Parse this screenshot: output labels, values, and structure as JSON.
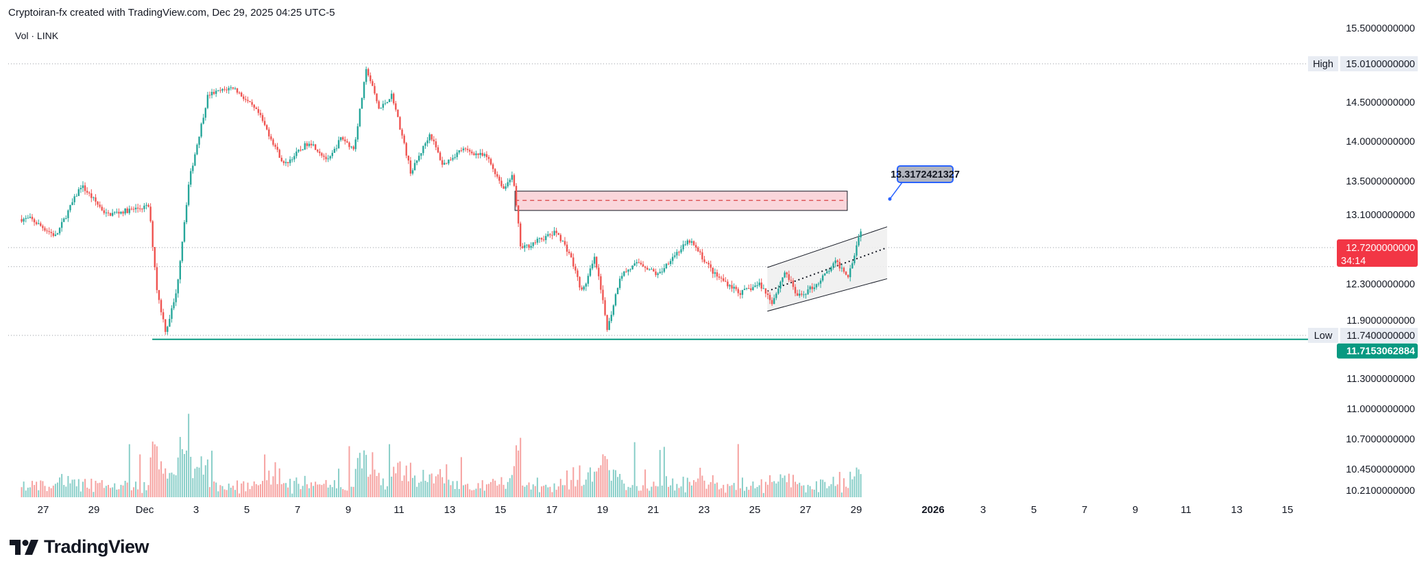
{
  "header": {
    "title": "Cryptoiran-fx created with TradingView.com, Dec 29, 2025 04:25 UTC-5",
    "vol_label": "Vol · LINK",
    "logo_text": "TradingView"
  },
  "chart_data": {
    "type": "candlestick",
    "symbol": "LINK",
    "interval_hours": 2,
    "x_ticks": [
      "27",
      "29",
      "Dec",
      "3",
      "5",
      "7",
      "9",
      "11",
      "13",
      "15",
      "17",
      "19",
      "21",
      "23",
      "25",
      "27",
      "29",
      "2026",
      "3",
      "5",
      "7",
      "9",
      "11",
      "13",
      "15"
    ],
    "y_ticks": [
      "15.5000000000",
      "14.5000000000",
      "14.0000000000",
      "13.5000000000",
      "13.1000000000",
      "12.3000000000",
      "11.9000000000",
      "11.3000000000",
      "11.0000000000",
      "10.7000000000",
      "10.4500000000",
      "10.2100000000"
    ],
    "y_tick_values": [
      15.5,
      14.5,
      14.0,
      13.5,
      13.1,
      12.3,
      11.9,
      11.3,
      11.0,
      10.7,
      10.45,
      10.21
    ],
    "high": {
      "label": "High",
      "value": "15.0100000000"
    },
    "low": {
      "label": "Low",
      "value": "11.7400000000"
    },
    "last_price": {
      "value": "12.7200000000",
      "countdown": "34:14"
    },
    "support_tag": "11.7153062884",
    "callout_value": "13.3172421327",
    "zone": {
      "top": 13.38,
      "bottom": 13.15,
      "mid": 13.27
    },
    "channel": {
      "upper": [
        [
          12.49,
          12.96
        ],
        [
          12.55,
          13.1
        ]
      ],
      "lower": [
        [
          12.0,
          12.36
        ],
        [
          12.06,
          12.5
        ]
      ],
      "mid_dotted": [
        12.22,
        12.72
      ]
    },
    "key_points": [
      [
        "Nov 26",
        13.05
      ],
      [
        "Nov 27",
        12.85
      ],
      [
        "Nov 28",
        13.45
      ],
      [
        "Nov 29",
        13.1
      ],
      [
        "Dec 1",
        13.2
      ],
      [
        "Dec 1",
        12.2
      ],
      [
        "Dec 1",
        11.78
      ],
      [
        "Dec 2",
        12.2
      ],
      [
        "Dec 2",
        13.5
      ],
      [
        "Dec 3",
        14.6
      ],
      [
        "Dec 4",
        14.7
      ],
      [
        "Dec 5",
        14.35
      ],
      [
        "Dec 6",
        13.7
      ],
      [
        "Dec 7",
        14.0
      ],
      [
        "Dec 8",
        13.75
      ],
      [
        "Dec 8",
        14.05
      ],
      [
        "Dec 9",
        13.9
      ],
      [
        "Dec 9",
        14.95
      ],
      [
        "Dec 10",
        14.4
      ],
      [
        "Dec 10",
        14.6
      ],
      [
        "Dec 11",
        13.6
      ],
      [
        "Dec 12",
        14.1
      ],
      [
        "Dec 12",
        13.7
      ],
      [
        "Dec 13",
        13.9
      ],
      [
        "Dec 14",
        13.8
      ],
      [
        "Dec 15",
        13.4
      ],
      [
        "Dec 15",
        13.6
      ],
      [
        "Dec 15",
        12.7
      ],
      [
        "Dec 16",
        12.8
      ],
      [
        "Dec 17",
        12.9
      ],
      [
        "Dec 17",
        12.65
      ],
      [
        "Dec 18",
        12.2
      ],
      [
        "Dec 18",
        12.6
      ],
      [
        "Dec 19",
        11.8
      ],
      [
        "Dec 19",
        12.4
      ],
      [
        "Dec 20",
        12.55
      ],
      [
        "Dec 21",
        12.4
      ],
      [
        "Dec 21",
        12.6
      ],
      [
        "Dec 22",
        12.8
      ],
      [
        "Dec 23",
        12.4
      ],
      [
        "Dec 24",
        12.2
      ],
      [
        "Dec 25",
        12.3
      ],
      [
        "Dec 25",
        12.1
      ],
      [
        "Dec 26",
        12.45
      ],
      [
        "Dec 26",
        12.15
      ],
      [
        "Dec 27",
        12.3
      ],
      [
        "Dec 28",
        12.55
      ],
      [
        "Dec 28",
        12.4
      ],
      [
        "Dec 29",
        12.95
      ],
      [
        "Dec 29",
        12.72
      ]
    ]
  },
  "colors": {
    "up": "#26a69a",
    "down": "#ef5350",
    "support": "#089981",
    "last_price_bg": "#f23645",
    "zone_fill": "#f8c8cf",
    "channel_fill": "#eeeeee"
  }
}
